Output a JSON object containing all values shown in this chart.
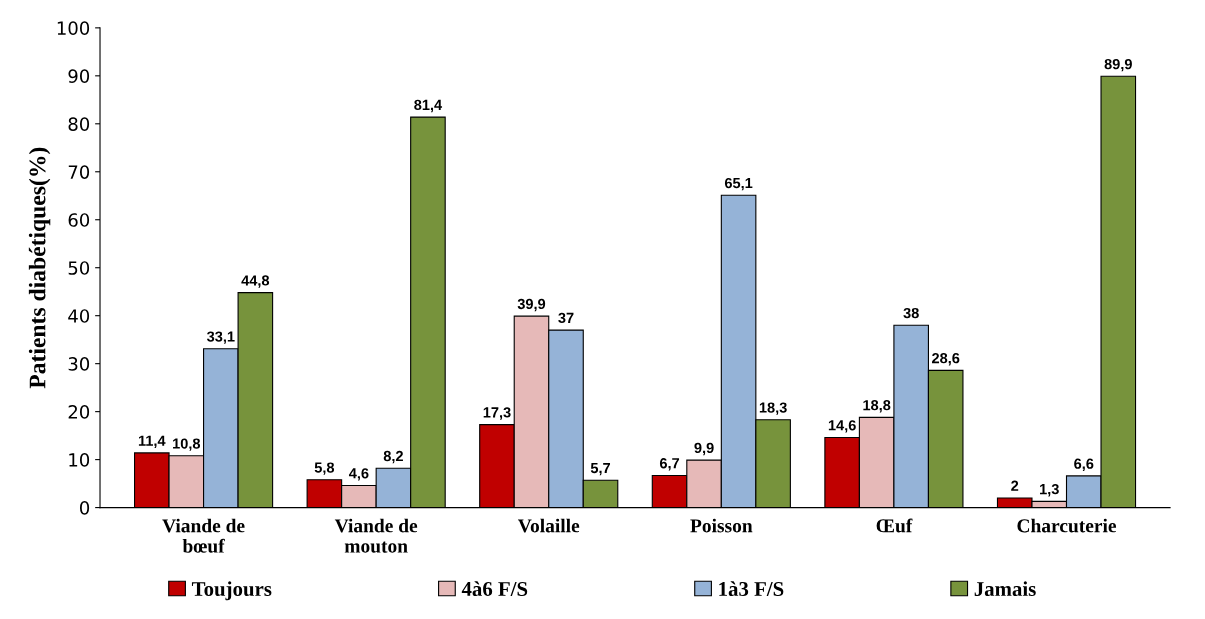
{
  "chart_data": {
    "type": "bar",
    "ylabel": "Patients diabétiques(%)",
    "categories": [
      "Viande de\nbœuf",
      "Viande de\nmouton",
      "Volaille",
      "Poisson",
      "Œuf",
      "Charcuterie"
    ],
    "series": [
      {
        "name": "Toujours",
        "color": "#c00000",
        "values": [
          11.4,
          5.8,
          17.3,
          6.7,
          14.6,
          2
        ],
        "value_labels": [
          "11,4",
          "5,8",
          "17,3",
          "6,7",
          "14,6",
          "2"
        ]
      },
      {
        "name": "4à6 F/S",
        "color": "#e6b9b8",
        "values": [
          10.8,
          4.6,
          39.9,
          9.9,
          18.8,
          1.3
        ],
        "value_labels": [
          "10,8",
          "4,6",
          "39,9",
          "9,9",
          "18,8",
          "1,3"
        ]
      },
      {
        "name": "1à3 F/S",
        "color": "#95b3d7",
        "values": [
          33.1,
          8.2,
          37,
          65.1,
          38,
          6.6
        ],
        "value_labels": [
          "33,1",
          "8,2",
          "37",
          "65,1",
          "38",
          "6,6"
        ]
      },
      {
        "name": "Jamais",
        "color": "#77933c",
        "values": [
          44.8,
          81.4,
          5.7,
          18.3,
          28.6,
          89.9
        ],
        "value_labels": [
          "44,8",
          "81,4",
          "5,7",
          "18,3",
          "28,6",
          "89,9"
        ]
      }
    ],
    "ylim": [
      0,
      100
    ],
    "yticks": [
      0,
      10,
      20,
      30,
      40,
      50,
      60,
      70,
      80,
      90,
      100
    ],
    "grid": false,
    "legend": "bottom"
  }
}
